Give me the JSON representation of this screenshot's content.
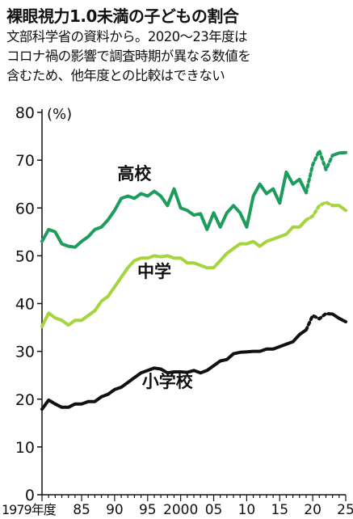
{
  "title": "裸眼視力1.0未満の子どもの割合",
  "subtitle_lines": [
    "文部科学省の資料から。2020～23年度は",
    "コロナ禍の影響で調査時期が異なる数値を",
    "含むため、他年度との比較はできない"
  ],
  "colors": {
    "high": "#1e9c5c",
    "middle": "#a6d43c",
    "elem": "#111111",
    "axis": "#111111"
  },
  "chart_data": {
    "type": "line",
    "ylabel": "(%)",
    "ylim": [
      0,
      80
    ],
    "xlim": [
      1979,
      2025
    ],
    "y_ticks": [
      0,
      10,
      20,
      30,
      40,
      50,
      60,
      70,
      80
    ],
    "x_tick_labels": [
      {
        "x": 1979,
        "label": "1979年度"
      },
      {
        "x": 1985,
        "label": "85"
      },
      {
        "x": 1990,
        "label": "90"
      },
      {
        "x": 1995,
        "label": "95"
      },
      {
        "x": 2000,
        "label": "2000"
      },
      {
        "x": 2005,
        "label": "05"
      },
      {
        "x": 2010,
        "label": "10"
      },
      {
        "x": 2015,
        "label": "15"
      },
      {
        "x": 2020,
        "label": "20"
      },
      {
        "x": 2025,
        "label": "25"
      }
    ],
    "dashed_range": [
      2019,
      2023
    ],
    "series": [
      {
        "name": "高校",
        "key": "high",
        "x": [
          1979,
          1980,
          1981,
          1982,
          1983,
          1984,
          1985,
          1986,
          1987,
          1988,
          1989,
          1990,
          1991,
          1992,
          1993,
          1994,
          1995,
          1996,
          1997,
          1998,
          1999,
          2000,
          2001,
          2002,
          2003,
          2004,
          2005,
          2006,
          2007,
          2008,
          2009,
          2010,
          2011,
          2012,
          2013,
          2014,
          2015,
          2016,
          2017,
          2018,
          2019,
          2020,
          2021,
          2022,
          2023,
          2024,
          2025
        ],
        "values": [
          53.0,
          55.5,
          55.0,
          52.5,
          52.0,
          51.8,
          53.0,
          54.0,
          55.5,
          56.0,
          57.5,
          59.5,
          62.0,
          62.5,
          62.0,
          63.0,
          62.5,
          63.5,
          62.5,
          60.5,
          64.0,
          60.0,
          59.5,
          58.5,
          58.8,
          55.5,
          59.0,
          56.0,
          59.0,
          60.5,
          59.0,
          56.0,
          62.5,
          65.0,
          63.0,
          64.0,
          61.0,
          67.5,
          65.0,
          66.0,
          63.2,
          69.0,
          72.0,
          68.0,
          71.0,
          71.5,
          71.6
        ]
      },
      {
        "name": "中学",
        "key": "middle",
        "x": [
          1979,
          1980,
          1981,
          1982,
          1983,
          1984,
          1985,
          1986,
          1987,
          1988,
          1989,
          1990,
          1991,
          1992,
          1993,
          1994,
          1995,
          1996,
          1997,
          1998,
          1999,
          2000,
          2001,
          2002,
          2003,
          2004,
          2005,
          2006,
          2007,
          2008,
          2009,
          2010,
          2011,
          2012,
          2013,
          2014,
          2015,
          2016,
          2017,
          2018,
          2019,
          2020,
          2021,
          2022,
          2023,
          2024,
          2025
        ],
        "values": [
          35.2,
          38.0,
          37.0,
          36.5,
          35.5,
          36.5,
          36.5,
          37.5,
          38.5,
          40.5,
          41.5,
          43.5,
          45.5,
          47.5,
          49.0,
          49.5,
          49.5,
          50.0,
          49.8,
          50.0,
          49.5,
          49.5,
          48.5,
          48.5,
          48.0,
          47.5,
          47.5,
          49.0,
          50.5,
          51.5,
          52.5,
          52.5,
          53.0,
          52.0,
          53.0,
          53.5,
          54.0,
          54.5,
          56.0,
          56.0,
          57.5,
          58.3,
          60.5,
          61.2,
          60.5,
          60.5,
          59.5
        ]
      },
      {
        "name": "小学校",
        "key": "elem",
        "x": [
          1979,
          1980,
          1981,
          1982,
          1983,
          1984,
          1985,
          1986,
          1987,
          1988,
          1989,
          1990,
          1991,
          1992,
          1993,
          1994,
          1995,
          1996,
          1997,
          1998,
          1999,
          2000,
          2001,
          2002,
          2003,
          2004,
          2005,
          2006,
          2007,
          2008,
          2009,
          2010,
          2011,
          2012,
          2013,
          2014,
          2015,
          2016,
          2017,
          2018,
          2019,
          2020,
          2021,
          2022,
          2023,
          2024,
          2025
        ],
        "values": [
          17.9,
          19.8,
          19.0,
          18.3,
          18.3,
          19.0,
          19.0,
          19.5,
          19.5,
          20.5,
          21.0,
          22.0,
          22.5,
          23.5,
          24.5,
          25.5,
          26.0,
          26.5,
          26.3,
          25.5,
          25.7,
          25.7,
          25.6,
          26.0,
          25.5,
          26.0,
          27.0,
          28.0,
          28.3,
          29.5,
          29.8,
          29.9,
          30.0,
          30.0,
          30.5,
          30.5,
          31.0,
          31.5,
          32.0,
          33.5,
          34.5,
          37.5,
          36.8,
          37.9,
          37.8,
          36.9,
          36.2
        ]
      }
    ],
    "series_labels": [
      {
        "key": "high",
        "text": "高校",
        "x": 1993,
        "y": 66
      },
      {
        "key": "middle",
        "text": "中学",
        "x": 1996,
        "y": 45.5
      },
      {
        "key": "elem",
        "text": "小学校",
        "x": 1998,
        "y": 22.5
      }
    ]
  }
}
